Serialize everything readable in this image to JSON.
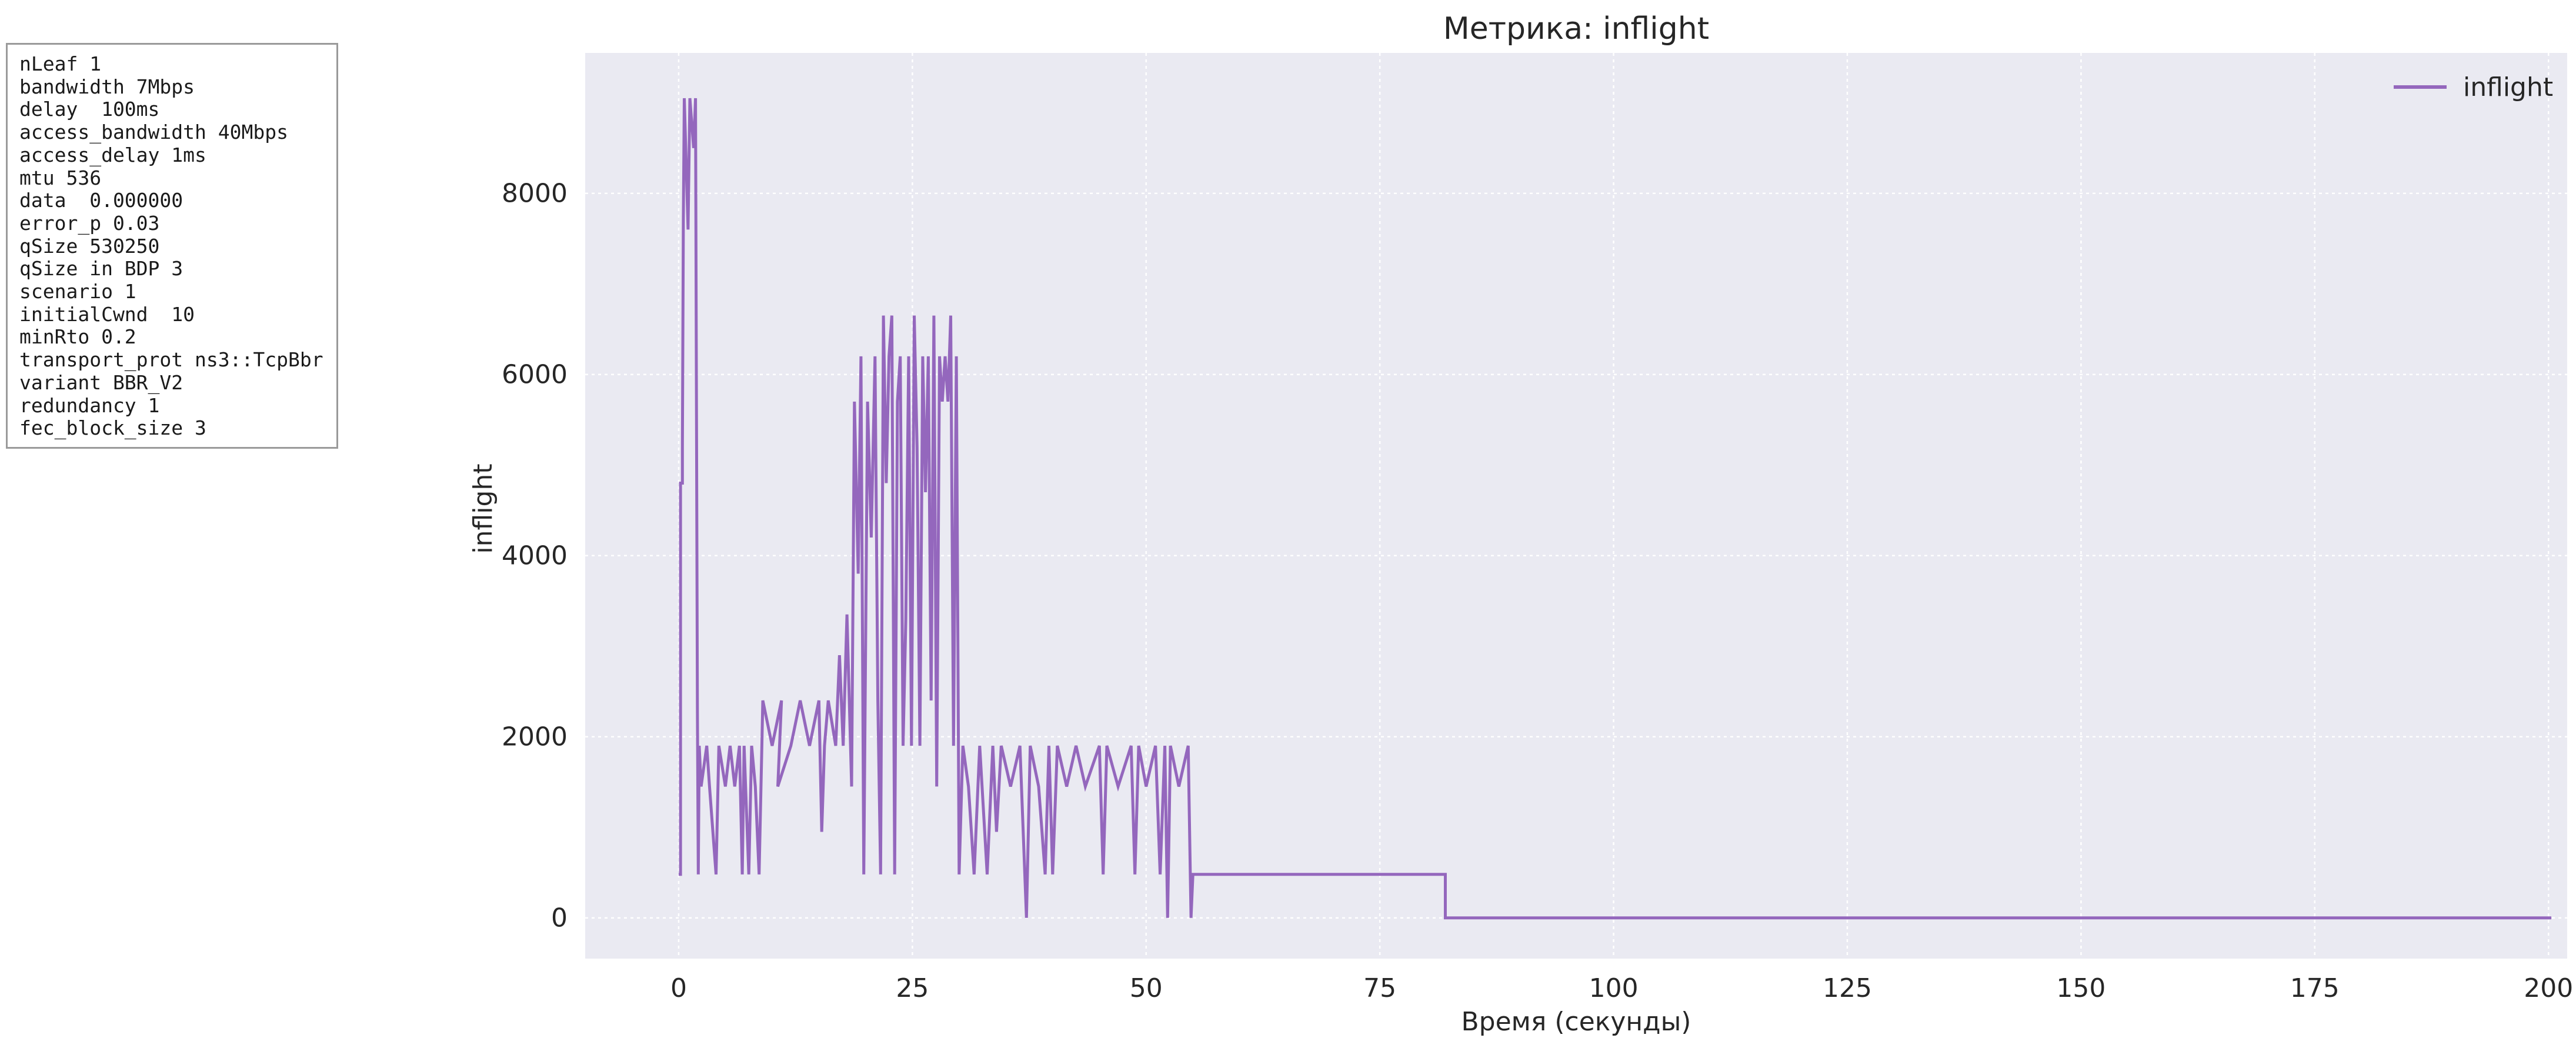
{
  "params": [
    "nLeaf 1",
    "bandwidth 7Mbps",
    "delay  100ms",
    "access_bandwidth 40Mbps",
    "access_delay 1ms",
    "mtu 536",
    "data  0.000000",
    "error_p 0.03",
    "qSize 530250",
    "qSize in BDP 3",
    "scenario 1",
    "initialCwnd  10",
    "minRto 0.2",
    "transport_prot ns3::TcpBbr",
    "variant BBR_V2",
    "redundancy 1",
    "fec_block_size 3"
  ],
  "chart_data": {
    "type": "line",
    "title": "Метрика: inflight",
    "xlabel": "Время (секунды)",
    "ylabel": "inflight",
    "xlim": [
      -10,
      202
    ],
    "ylim": [
      -450,
      9550
    ],
    "xticks": [
      0,
      25,
      50,
      75,
      100,
      125,
      150,
      175,
      200
    ],
    "yticks": [
      0,
      2000,
      4000,
      6000,
      8000
    ],
    "grid": true,
    "legend": "top-right",
    "series": [
      {
        "name": "inflight",
        "color": "#9467bd",
        "points": [
          [
            0.0,
            480
          ],
          [
            0.2,
            480
          ],
          [
            0.2,
            4800
          ],
          [
            0.4,
            4800
          ],
          [
            0.4,
            5200
          ],
          [
            0.5,
            7700
          ],
          [
            0.6,
            9050
          ],
          [
            1.0,
            7600
          ],
          [
            1.2,
            9050
          ],
          [
            1.6,
            8500
          ],
          [
            1.8,
            9050
          ],
          [
            2.0,
            2300
          ],
          [
            2.1,
            480
          ],
          [
            2.2,
            1900
          ],
          [
            2.4,
            1450
          ],
          [
            3.0,
            1900
          ],
          [
            3.3,
            1450
          ],
          [
            4.0,
            480
          ],
          [
            4.3,
            1900
          ],
          [
            5.0,
            1450
          ],
          [
            5.5,
            1900
          ],
          [
            6.0,
            1450
          ],
          [
            6.5,
            1900
          ],
          [
            6.8,
            480
          ],
          [
            7.0,
            1900
          ],
          [
            7.5,
            480
          ],
          [
            7.8,
            1900
          ],
          [
            8.2,
            1450
          ],
          [
            8.6,
            480
          ],
          [
            8.9,
            1900
          ],
          [
            9.0,
            2400
          ],
          [
            10.0,
            1900
          ],
          [
            11.0,
            2400
          ],
          [
            10.6,
            1450
          ],
          [
            12.0,
            1900
          ],
          [
            13.0,
            2400
          ],
          [
            14.0,
            1900
          ],
          [
            15.0,
            2400
          ],
          [
            15.3,
            950
          ],
          [
            15.6,
            1900
          ],
          [
            16.0,
            2400
          ],
          [
            16.8,
            1900
          ],
          [
            17.2,
            2900
          ],
          [
            17.6,
            1900
          ],
          [
            18.0,
            3350
          ],
          [
            18.5,
            1450
          ],
          [
            18.8,
            5700
          ],
          [
            19.2,
            3800
          ],
          [
            19.5,
            6200
          ],
          [
            19.8,
            480
          ],
          [
            20.2,
            5700
          ],
          [
            20.6,
            4200
          ],
          [
            21.0,
            6200
          ],
          [
            21.3,
            2400
          ],
          [
            21.6,
            480
          ],
          [
            21.9,
            6650
          ],
          [
            22.2,
            4800
          ],
          [
            22.5,
            6200
          ],
          [
            22.8,
            6650
          ],
          [
            23.1,
            480
          ],
          [
            23.4,
            5700
          ],
          [
            23.7,
            6200
          ],
          [
            24.0,
            1900
          ],
          [
            24.3,
            3300
          ],
          [
            24.6,
            6200
          ],
          [
            24.9,
            1900
          ],
          [
            25.2,
            6650
          ],
          [
            25.5,
            5200
          ],
          [
            25.8,
            1900
          ],
          [
            26.1,
            6200
          ],
          [
            26.4,
            4700
          ],
          [
            26.7,
            6200
          ],
          [
            27.0,
            2400
          ],
          [
            27.3,
            6650
          ],
          [
            27.6,
            1450
          ],
          [
            27.9,
            6200
          ],
          [
            28.2,
            5700
          ],
          [
            28.5,
            6200
          ],
          [
            28.8,
            5700
          ],
          [
            29.1,
            6650
          ],
          [
            29.4,
            1900
          ],
          [
            29.7,
            6200
          ],
          [
            30.0,
            480
          ],
          [
            30.4,
            1900
          ],
          [
            31.0,
            1450
          ],
          [
            31.6,
            480
          ],
          [
            32.2,
            1900
          ],
          [
            33.0,
            480
          ],
          [
            33.6,
            1900
          ],
          [
            34.0,
            950
          ],
          [
            34.5,
            1900
          ],
          [
            35.5,
            1450
          ],
          [
            36.5,
            1900
          ],
          [
            37.2,
            0
          ],
          [
            37.6,
            1900
          ],
          [
            38.5,
            1450
          ],
          [
            39.2,
            480
          ],
          [
            39.6,
            1900
          ],
          [
            40.0,
            480
          ],
          [
            40.5,
            1900
          ],
          [
            41.5,
            1450
          ],
          [
            42.5,
            1900
          ],
          [
            43.5,
            1450
          ],
          [
            45.0,
            1900
          ],
          [
            45.4,
            480
          ],
          [
            45.8,
            1900
          ],
          [
            47.0,
            1450
          ],
          [
            48.4,
            1900
          ],
          [
            48.8,
            480
          ],
          [
            49.2,
            1900
          ],
          [
            50.0,
            1450
          ],
          [
            51.0,
            1900
          ],
          [
            51.5,
            480
          ],
          [
            52.0,
            1900
          ],
          [
            52.3,
            0
          ],
          [
            52.6,
            1900
          ],
          [
            53.5,
            1450
          ],
          [
            54.5,
            1900
          ],
          [
            54.8,
            0
          ],
          [
            55.0,
            480
          ],
          [
            82.0,
            480
          ],
          [
            82.0,
            0
          ],
          [
            200.3,
            0
          ]
        ]
      }
    ]
  }
}
